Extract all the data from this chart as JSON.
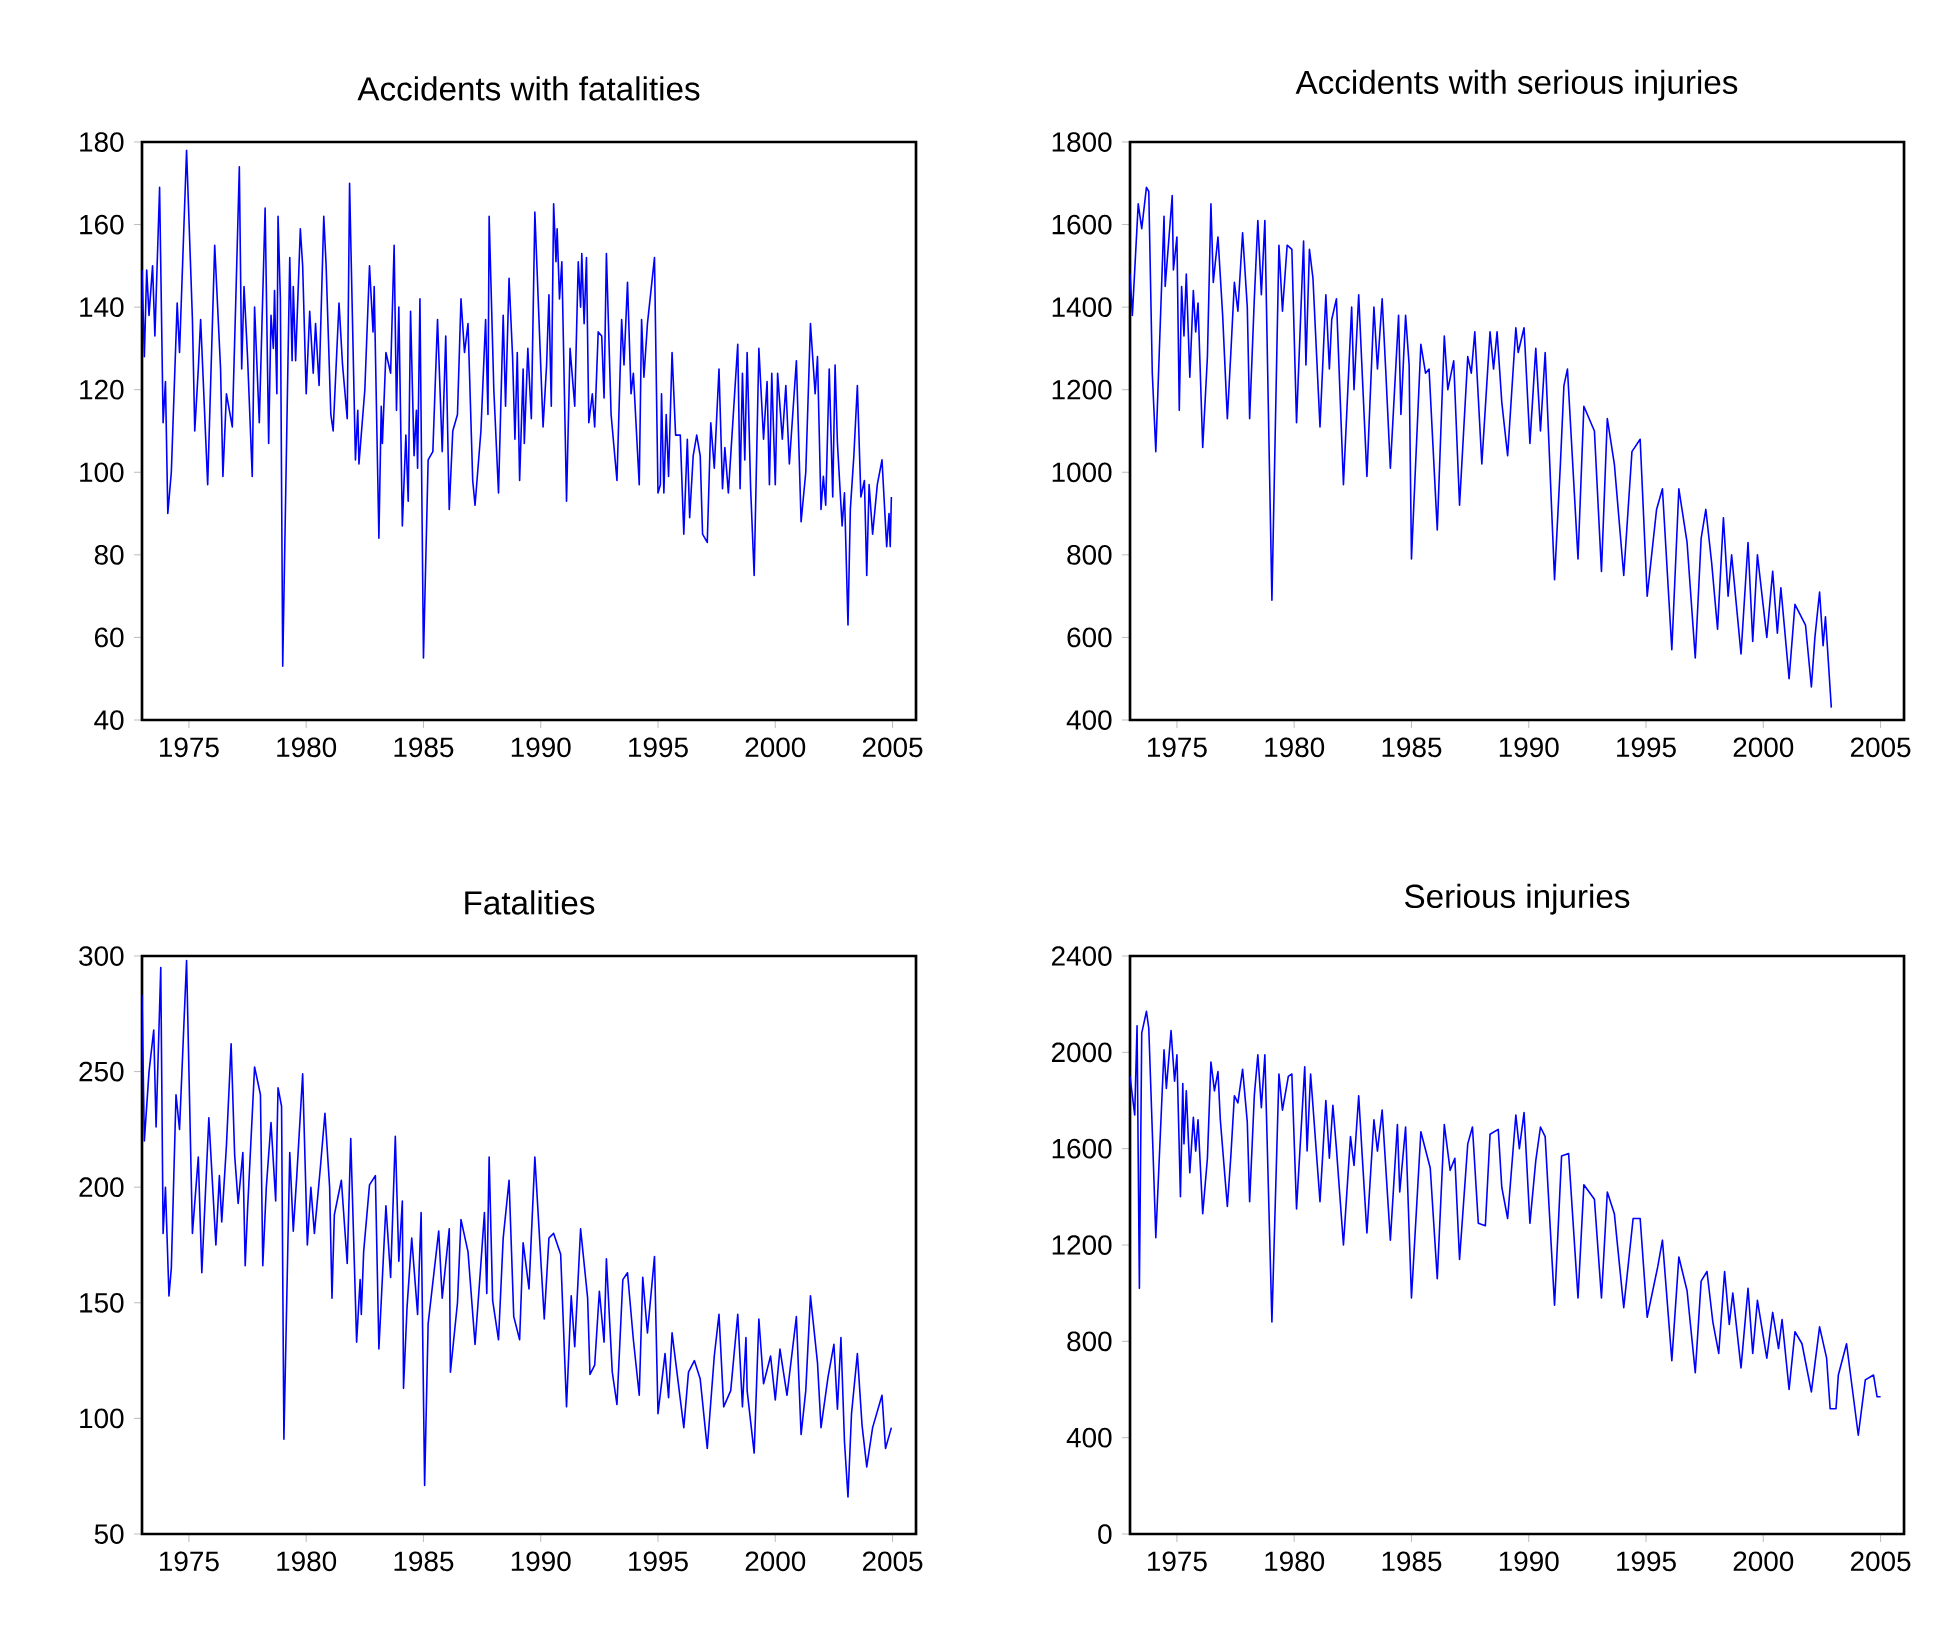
{
  "chart_data": [
    {
      "type": "line",
      "title": "Accidents with fatalities",
      "color": "#0000ff",
      "xlim": [
        1973,
        2006
      ],
      "ylim": [
        40,
        180
      ],
      "xticks": [
        1975,
        1980,
        1985,
        1990,
        1995,
        2000,
        2005
      ],
      "yticks": [
        40,
        60,
        80,
        100,
        120,
        140,
        160,
        180
      ],
      "x": [
        1973.0,
        1973.1,
        1973.2,
        1973.3,
        1973.45,
        1973.55,
        1973.75,
        1973.9,
        1974.0,
        1974.1,
        1974.25,
        1974.5,
        1974.6,
        1974.9,
        1975.15,
        1975.25,
        1975.4,
        1975.5,
        1975.8,
        1976.1,
        1976.35,
        1976.45,
        1976.6,
        1976.85,
        1977.0,
        1977.15,
        1977.25,
        1977.35,
        1977.5,
        1977.7,
        1977.8,
        1978.0,
        1978.25,
        1978.4,
        1978.5,
        1978.6,
        1978.65,
        1978.75,
        1978.8,
        1978.9,
        1979.0,
        1979.3,
        1979.4,
        1979.45,
        1979.55,
        1979.75,
        1979.85,
        1980.0,
        1980.15,
        1980.3,
        1980.4,
        1980.55,
        1980.75,
        1980.85,
        1981.05,
        1981.15,
        1981.4,
        1981.55,
        1981.75,
        1981.85,
        1982.1,
        1982.2,
        1982.25,
        1982.5,
        1982.7,
        1982.85,
        1982.9,
        1983.1,
        1983.2,
        1983.25,
        1983.4,
        1983.6,
        1983.75,
        1983.85,
        1983.95,
        1984.1,
        1984.25,
        1984.35,
        1984.45,
        1984.6,
        1984.7,
        1984.75,
        1984.85,
        1985.0,
        1985.2,
        1985.4,
        1985.6,
        1985.8,
        1985.95,
        1986.1,
        1986.25,
        1986.45,
        1986.6,
        1986.75,
        1986.9,
        1987.1,
        1987.2,
        1987.45,
        1987.65,
        1987.75,
        1987.8,
        1988.0,
        1988.2,
        1988.4,
        1988.5,
        1988.65,
        1988.8,
        1988.9,
        1989.0,
        1989.1,
        1989.25,
        1989.3,
        1989.45,
        1989.6,
        1989.75,
        1990.1,
        1990.25,
        1990.35,
        1990.45,
        1990.55,
        1990.65,
        1990.7,
        1990.8,
        1990.9,
        1991.1,
        1991.25,
        1991.45,
        1991.6,
        1991.7,
        1991.75,
        1991.85,
        1991.95,
        1992.05,
        1992.2,
        1992.3,
        1992.45,
        1992.6,
        1992.7,
        1992.8,
        1993.0,
        1993.25,
        1993.45,
        1993.55,
        1993.7,
        1993.85,
        1993.95,
        1994.2,
        1994.3,
        1994.4,
        1994.55,
        1994.85,
        1995.0,
        1995.1,
        1995.15,
        1995.25,
        1995.35,
        1995.45,
        1995.6,
        1995.75,
        1995.95,
        1996.1,
        1996.25,
        1996.35,
        1996.5,
        1996.65,
        1996.8,
        1996.9,
        1997.1,
        1997.25,
        1997.4,
        1997.6,
        1997.75,
        1997.85,
        1998.0,
        1998.4,
        1998.5,
        1998.6,
        1998.7,
        1998.8,
        1998.95,
        1999.1,
        1999.3,
        1999.5,
        1999.65,
        1999.75,
        1999.85,
        2000.0,
        2000.1,
        2000.3,
        2000.45,
        2000.6,
        2000.9,
        2001.1,
        2001.3,
        2001.5,
        2001.7,
        2001.8,
        2001.95,
        2002.05,
        2002.15,
        2002.3,
        2002.45,
        2002.55,
        2002.65,
        2002.85,
        2002.95,
        2003.1,
        2003.2,
        2003.35,
        2003.5,
        2003.65,
        2003.8,
        2003.9,
        2004.0,
        2004.15,
        2004.35,
        2004.55,
        2004.75,
        2004.85,
        2004.9,
        2004.95
      ],
      "values": [
        149,
        128,
        149,
        138,
        150,
        133,
        169,
        112,
        122,
        90,
        100,
        141,
        129,
        178,
        137,
        110,
        125,
        137,
        97,
        155,
        125,
        99,
        119,
        111,
        142,
        174,
        125,
        145,
        128,
        99,
        140,
        112,
        164,
        107,
        138,
        130,
        144,
        119,
        162,
        142,
        53,
        152,
        127,
        145,
        127,
        159,
        150,
        119,
        139,
        124,
        136,
        121,
        162,
        150,
        114,
        110,
        141,
        126,
        113,
        170,
        103,
        115,
        102,
        120,
        150,
        134,
        145,
        84,
        116,
        107,
        129,
        124,
        155,
        115,
        140,
        87,
        109,
        93,
        139,
        104,
        115,
        101,
        142,
        55,
        103,
        105,
        137,
        105,
        133,
        91,
        110,
        114,
        142,
        129,
        136,
        98,
        92,
        110,
        137,
        114,
        162,
        120,
        95,
        138,
        116,
        147,
        128,
        108,
        129,
        98,
        125,
        107,
        130,
        113,
        163,
        111,
        126,
        143,
        116,
        165,
        151,
        159,
        142,
        151,
        93,
        130,
        116,
        151,
        140,
        153,
        136,
        152,
        112,
        119,
        111,
        134,
        133,
        118,
        153,
        114,
        98,
        137,
        126,
        146,
        119,
        124,
        97,
        137,
        123,
        136,
        152,
        95,
        97,
        119,
        95,
        114,
        99,
        129,
        109,
        109,
        85,
        108,
        89,
        104,
        109,
        104,
        85,
        83,
        112,
        101,
        125,
        96,
        106,
        95,
        131,
        96,
        124,
        103,
        129,
        96,
        75,
        130,
        108,
        122,
        97,
        124,
        97,
        124,
        108,
        121,
        102,
        127,
        88,
        100,
        136,
        119,
        128,
        91,
        99,
        92,
        125,
        94,
        126,
        107,
        87,
        95,
        63,
        91,
        104,
        121,
        94,
        98,
        75,
        97,
        85,
        97,
        103,
        82,
        90,
        82,
        94
      ]
    },
    {
      "type": "line",
      "title": "Accidents with serious injuries",
      "color": "#0000ff",
      "xlim": [
        1973,
        2006
      ],
      "ylim": [
        400,
        1800
      ],
      "xticks": [
        1975,
        1980,
        1985,
        1990,
        1995,
        2000,
        2005
      ],
      "yticks": [
        400,
        600,
        800,
        1000,
        1200,
        1400,
        1600,
        1800
      ],
      "x": [
        1973.0,
        1973.1,
        1973.35,
        1973.5,
        1973.7,
        1973.8,
        1973.95,
        1974.1,
        1974.45,
        1974.5,
        1974.8,
        1974.85,
        1975.0,
        1975.1,
        1975.2,
        1975.3,
        1975.4,
        1975.55,
        1975.7,
        1975.8,
        1975.9,
        1976.1,
        1976.3,
        1976.45,
        1976.55,
        1976.75,
        1976.95,
        1977.15,
        1977.3,
        1977.45,
        1977.6,
        1977.8,
        1978.0,
        1978.1,
        1978.3,
        1978.45,
        1978.6,
        1978.75,
        1979.05,
        1979.35,
        1979.5,
        1979.7,
        1979.9,
        1980.1,
        1980.4,
        1980.5,
        1980.65,
        1980.8,
        1981.1,
        1981.35,
        1981.5,
        1981.6,
        1981.8,
        1982.1,
        1982.45,
        1982.55,
        1982.75,
        1982.9,
        1983.1,
        1983.4,
        1983.55,
        1983.75,
        1983.9,
        1984.1,
        1984.45,
        1984.55,
        1984.75,
        1984.9,
        1985.0,
        1985.4,
        1985.6,
        1985.75,
        1986.1,
        1986.4,
        1986.55,
        1986.8,
        1987.05,
        1987.4,
        1987.55,
        1987.7,
        1988.0,
        1988.35,
        1988.5,
        1988.65,
        1988.85,
        1989.1,
        1989.45,
        1989.55,
        1989.8,
        1990.05,
        1990.3,
        1990.5,
        1990.7,
        1991.1,
        1991.35,
        1991.5,
        1991.65,
        1992.1,
        1992.35,
        1992.8,
        1993.1,
        1993.35,
        1993.65,
        1994.05,
        1994.4,
        1994.75,
        1995.05,
        1995.45,
        1995.7,
        1996.1,
        1996.4,
        1996.75,
        1997.1,
        1997.35,
        1997.55,
        1997.8,
        1998.05,
        1998.3,
        1998.5,
        1998.65,
        1999.05,
        1999.35,
        1999.55,
        1999.75,
        2000.15,
        2000.4,
        2000.6,
        2000.75,
        2001.1,
        2001.35,
        2001.8,
        2002.05,
        2002.2,
        2002.4,
        2002.55,
        2002.65,
        2002.9
      ],
      "values": [
        1480,
        1380,
        1650,
        1590,
        1690,
        1680,
        1240,
        1050,
        1620,
        1450,
        1670,
        1490,
        1570,
        1150,
        1450,
        1330,
        1480,
        1230,
        1440,
        1340,
        1410,
        1060,
        1280,
        1650,
        1460,
        1570,
        1380,
        1130,
        1290,
        1460,
        1390,
        1580,
        1400,
        1130,
        1420,
        1610,
        1430,
        1610,
        690,
        1550,
        1390,
        1550,
        1540,
        1120,
        1560,
        1260,
        1540,
        1470,
        1110,
        1430,
        1250,
        1370,
        1420,
        970,
        1400,
        1200,
        1430,
        1240,
        990,
        1400,
        1250,
        1420,
        1250,
        1010,
        1380,
        1140,
        1380,
        1260,
        790,
        1310,
        1240,
        1250,
        860,
        1330,
        1200,
        1270,
        920,
        1280,
        1240,
        1340,
        1020,
        1340,
        1250,
        1340,
        1170,
        1040,
        1350,
        1290,
        1350,
        1070,
        1300,
        1100,
        1290,
        740,
        1020,
        1210,
        1250,
        790,
        1160,
        1100,
        760,
        1130,
        1020,
        750,
        1050,
        1080,
        700,
        910,
        960,
        570,
        960,
        830,
        550,
        840,
        910,
        780,
        620,
        890,
        700,
        800,
        560,
        830,
        590,
        800,
        600,
        760,
        610,
        720,
        500,
        680,
        630,
        480,
        600,
        710,
        580,
        650,
        430
      ]
    },
    {
      "type": "line",
      "title": "Fatalities",
      "color": "#0000ff",
      "xlim": [
        1973,
        2006
      ],
      "ylim": [
        50,
        300
      ],
      "xticks": [
        1975,
        1980,
        1985,
        1990,
        1995,
        2000,
        2005
      ],
      "yticks": [
        50,
        100,
        150,
        200,
        250,
        300
      ],
      "x": [
        1973.0,
        1973.1,
        1973.3,
        1973.5,
        1973.6,
        1973.8,
        1973.9,
        1974.0,
        1974.15,
        1974.25,
        1974.45,
        1974.6,
        1974.9,
        1975.15,
        1975.4,
        1975.55,
        1975.85,
        1976.15,
        1976.3,
        1976.4,
        1976.6,
        1976.8,
        1976.95,
        1977.1,
        1977.3,
        1977.4,
        1977.5,
        1977.8,
        1978.05,
        1978.15,
        1978.3,
        1978.5,
        1978.7,
        1978.8,
        1978.95,
        1979.05,
        1979.3,
        1979.45,
        1979.6,
        1979.85,
        1980.05,
        1980.2,
        1980.35,
        1980.6,
        1980.8,
        1981.0,
        1981.1,
        1981.2,
        1981.5,
        1981.75,
        1981.9,
        1982.15,
        1982.3,
        1982.35,
        1982.45,
        1982.7,
        1982.95,
        1983.1,
        1983.4,
        1983.6,
        1983.8,
        1983.95,
        1984.1,
        1984.15,
        1984.3,
        1984.5,
        1984.75,
        1984.9,
        1985.05,
        1985.2,
        1985.65,
        1985.8,
        1986.1,
        1986.15,
        1986.45,
        1986.6,
        1986.9,
        1987.2,
        1987.45,
        1987.6,
        1987.7,
        1987.8,
        1987.95,
        1988.2,
        1988.4,
        1988.65,
        1988.85,
        1989.1,
        1989.25,
        1989.5,
        1989.75,
        1990.15,
        1990.35,
        1990.55,
        1990.85,
        1991.1,
        1991.3,
        1991.45,
        1991.7,
        1992.0,
        1992.1,
        1992.3,
        1992.5,
        1992.7,
        1992.8,
        1993.05,
        1993.25,
        1993.5,
        1993.7,
        1993.95,
        1994.2,
        1994.35,
        1994.55,
        1994.85,
        1995.0,
        1995.3,
        1995.45,
        1995.6,
        1996.1,
        1996.3,
        1996.55,
        1996.8,
        1997.1,
        1997.4,
        1997.6,
        1997.8,
        1998.1,
        1998.4,
        1998.6,
        1998.75,
        1998.8,
        1999.1,
        1999.3,
        1999.5,
        1999.8,
        2000.0,
        2000.2,
        2000.5,
        2000.9,
        2001.1,
        2001.3,
        2001.5,
        2001.8,
        2001.95,
        2002.25,
        2002.5,
        2002.65,
        2002.8,
        2002.95,
        2003.1,
        2003.25,
        2003.5,
        2003.7,
        2003.9,
        2004.15,
        2004.55,
        2004.7,
        2004.95
      ],
      "values": [
        283,
        220,
        250,
        268,
        226,
        295,
        180,
        200,
        153,
        165,
        240,
        225,
        298,
        180,
        213,
        163,
        230,
        175,
        205,
        185,
        218,
        262,
        214,
        193,
        215,
        166,
        190,
        252,
        240,
        166,
        200,
        228,
        194,
        243,
        235,
        91,
        215,
        181,
        205,
        249,
        175,
        200,
        180,
        208,
        232,
        200,
        152,
        188,
        203,
        167,
        221,
        133,
        160,
        145,
        172,
        201,
        205,
        130,
        192,
        161,
        222,
        168,
        194,
        113,
        148,
        178,
        145,
        189,
        71,
        141,
        181,
        152,
        182,
        120,
        150,
        186,
        172,
        132,
        167,
        189,
        154,
        213,
        151,
        134,
        178,
        203,
        144,
        134,
        176,
        156,
        213,
        143,
        178,
        180,
        171,
        105,
        153,
        131,
        182,
        152,
        119,
        123,
        155,
        133,
        169,
        120,
        106,
        160,
        163,
        134,
        110,
        161,
        137,
        170,
        102,
        128,
        109,
        137,
        96,
        120,
        125,
        117,
        87,
        127,
        145,
        105,
        112,
        145,
        105,
        135,
        112,
        85,
        143,
        115,
        127,
        108,
        130,
        110,
        144,
        93,
        112,
        153,
        124,
        96,
        118,
        132,
        104,
        135,
        90,
        66,
        102,
        128,
        97,
        79,
        96,
        110,
        87,
        96
      ]
    },
    {
      "type": "line",
      "title": "Serious injuries",
      "color": "#0000ff",
      "xlim": [
        1973,
        2006
      ],
      "ylim": [
        0,
        2400
      ],
      "xticks": [
        1975,
        1980,
        1985,
        1990,
        1995,
        2000,
        2005
      ],
      "yticks": [
        0,
        400,
        800,
        1200,
        1600,
        2000,
        2400
      ],
      "x": [
        1973.0,
        1973.2,
        1973.3,
        1973.4,
        1973.5,
        1973.7,
        1973.8,
        1974.0,
        1974.1,
        1974.45,
        1974.55,
        1974.75,
        1974.9,
        1975.0,
        1975.15,
        1975.25,
        1975.3,
        1975.4,
        1975.55,
        1975.7,
        1975.8,
        1975.9,
        1976.1,
        1976.3,
        1976.45,
        1976.6,
        1976.75,
        1976.85,
        1977.15,
        1977.3,
        1977.45,
        1977.6,
        1977.8,
        1978.0,
        1978.1,
        1978.3,
        1978.45,
        1978.6,
        1978.75,
        1979.05,
        1979.35,
        1979.5,
        1979.75,
        1979.9,
        1980.1,
        1980.45,
        1980.55,
        1980.7,
        1981.1,
        1981.35,
        1981.5,
        1981.65,
        1981.8,
        1982.1,
        1982.4,
        1982.55,
        1982.75,
        1982.9,
        1983.1,
        1983.4,
        1983.55,
        1983.75,
        1984.1,
        1984.4,
        1984.5,
        1984.75,
        1985.0,
        1985.4,
        1985.8,
        1986.1,
        1986.4,
        1986.65,
        1986.85,
        1987.05,
        1987.4,
        1987.6,
        1987.85,
        1988.15,
        1988.35,
        1988.7,
        1988.85,
        1989.1,
        1989.45,
        1989.6,
        1989.8,
        1990.05,
        1990.3,
        1990.5,
        1990.7,
        1991.1,
        1991.4,
        1991.7,
        1992.1,
        1992.35,
        1992.8,
        1993.1,
        1993.35,
        1993.65,
        1994.05,
        1994.45,
        1994.75,
        1995.05,
        1995.5,
        1995.7,
        1996.1,
        1996.4,
        1996.75,
        1997.1,
        1997.35,
        1997.6,
        1997.85,
        1998.1,
        1998.35,
        1998.55,
        1998.7,
        1999.05,
        1999.35,
        1999.55,
        1999.75,
        2000.15,
        2000.4,
        2000.65,
        2000.8,
        2001.1,
        2001.35,
        2001.65,
        2002.05,
        2002.4,
        2002.7,
        2002.85,
        2003.1,
        2003.2,
        2003.55,
        2003.8,
        2004.05,
        2004.35,
        2004.7,
        2004.85,
        2005.0
      ],
      "values": [
        1900,
        1740,
        2110,
        1020,
        2080,
        2170,
        2100,
        1530,
        1230,
        2010,
        1850,
        2090,
        1880,
        1990,
        1400,
        1870,
        1620,
        1840,
        1500,
        1730,
        1590,
        1720,
        1330,
        1560,
        1960,
        1840,
        1920,
        1720,
        1360,
        1570,
        1820,
        1790,
        1930,
        1710,
        1380,
        1820,
        1990,
        1770,
        1990,
        880,
        1910,
        1760,
        1900,
        1910,
        1350,
        1940,
        1590,
        1910,
        1380,
        1800,
        1560,
        1780,
        1600,
        1200,
        1650,
        1530,
        1820,
        1570,
        1250,
        1720,
        1590,
        1760,
        1220,
        1700,
        1420,
        1690,
        980,
        1670,
        1520,
        1060,
        1700,
        1510,
        1560,
        1140,
        1620,
        1690,
        1290,
        1280,
        1660,
        1680,
        1440,
        1310,
        1740,
        1600,
        1750,
        1290,
        1550,
        1690,
        1650,
        950,
        1570,
        1580,
        980,
        1450,
        1390,
        980,
        1420,
        1330,
        940,
        1310,
        1310,
        900,
        1110,
        1220,
        720,
        1150,
        1010,
        670,
        1050,
        1090,
        880,
        750,
        1090,
        870,
        1000,
        690,
        1020,
        750,
        970,
        730,
        920,
        770,
        890,
        600,
        840,
        790,
        590,
        860,
        730,
        520,
        520,
        660,
        790,
        600,
        410,
        640,
        660,
        570,
        570
      ]
    }
  ]
}
